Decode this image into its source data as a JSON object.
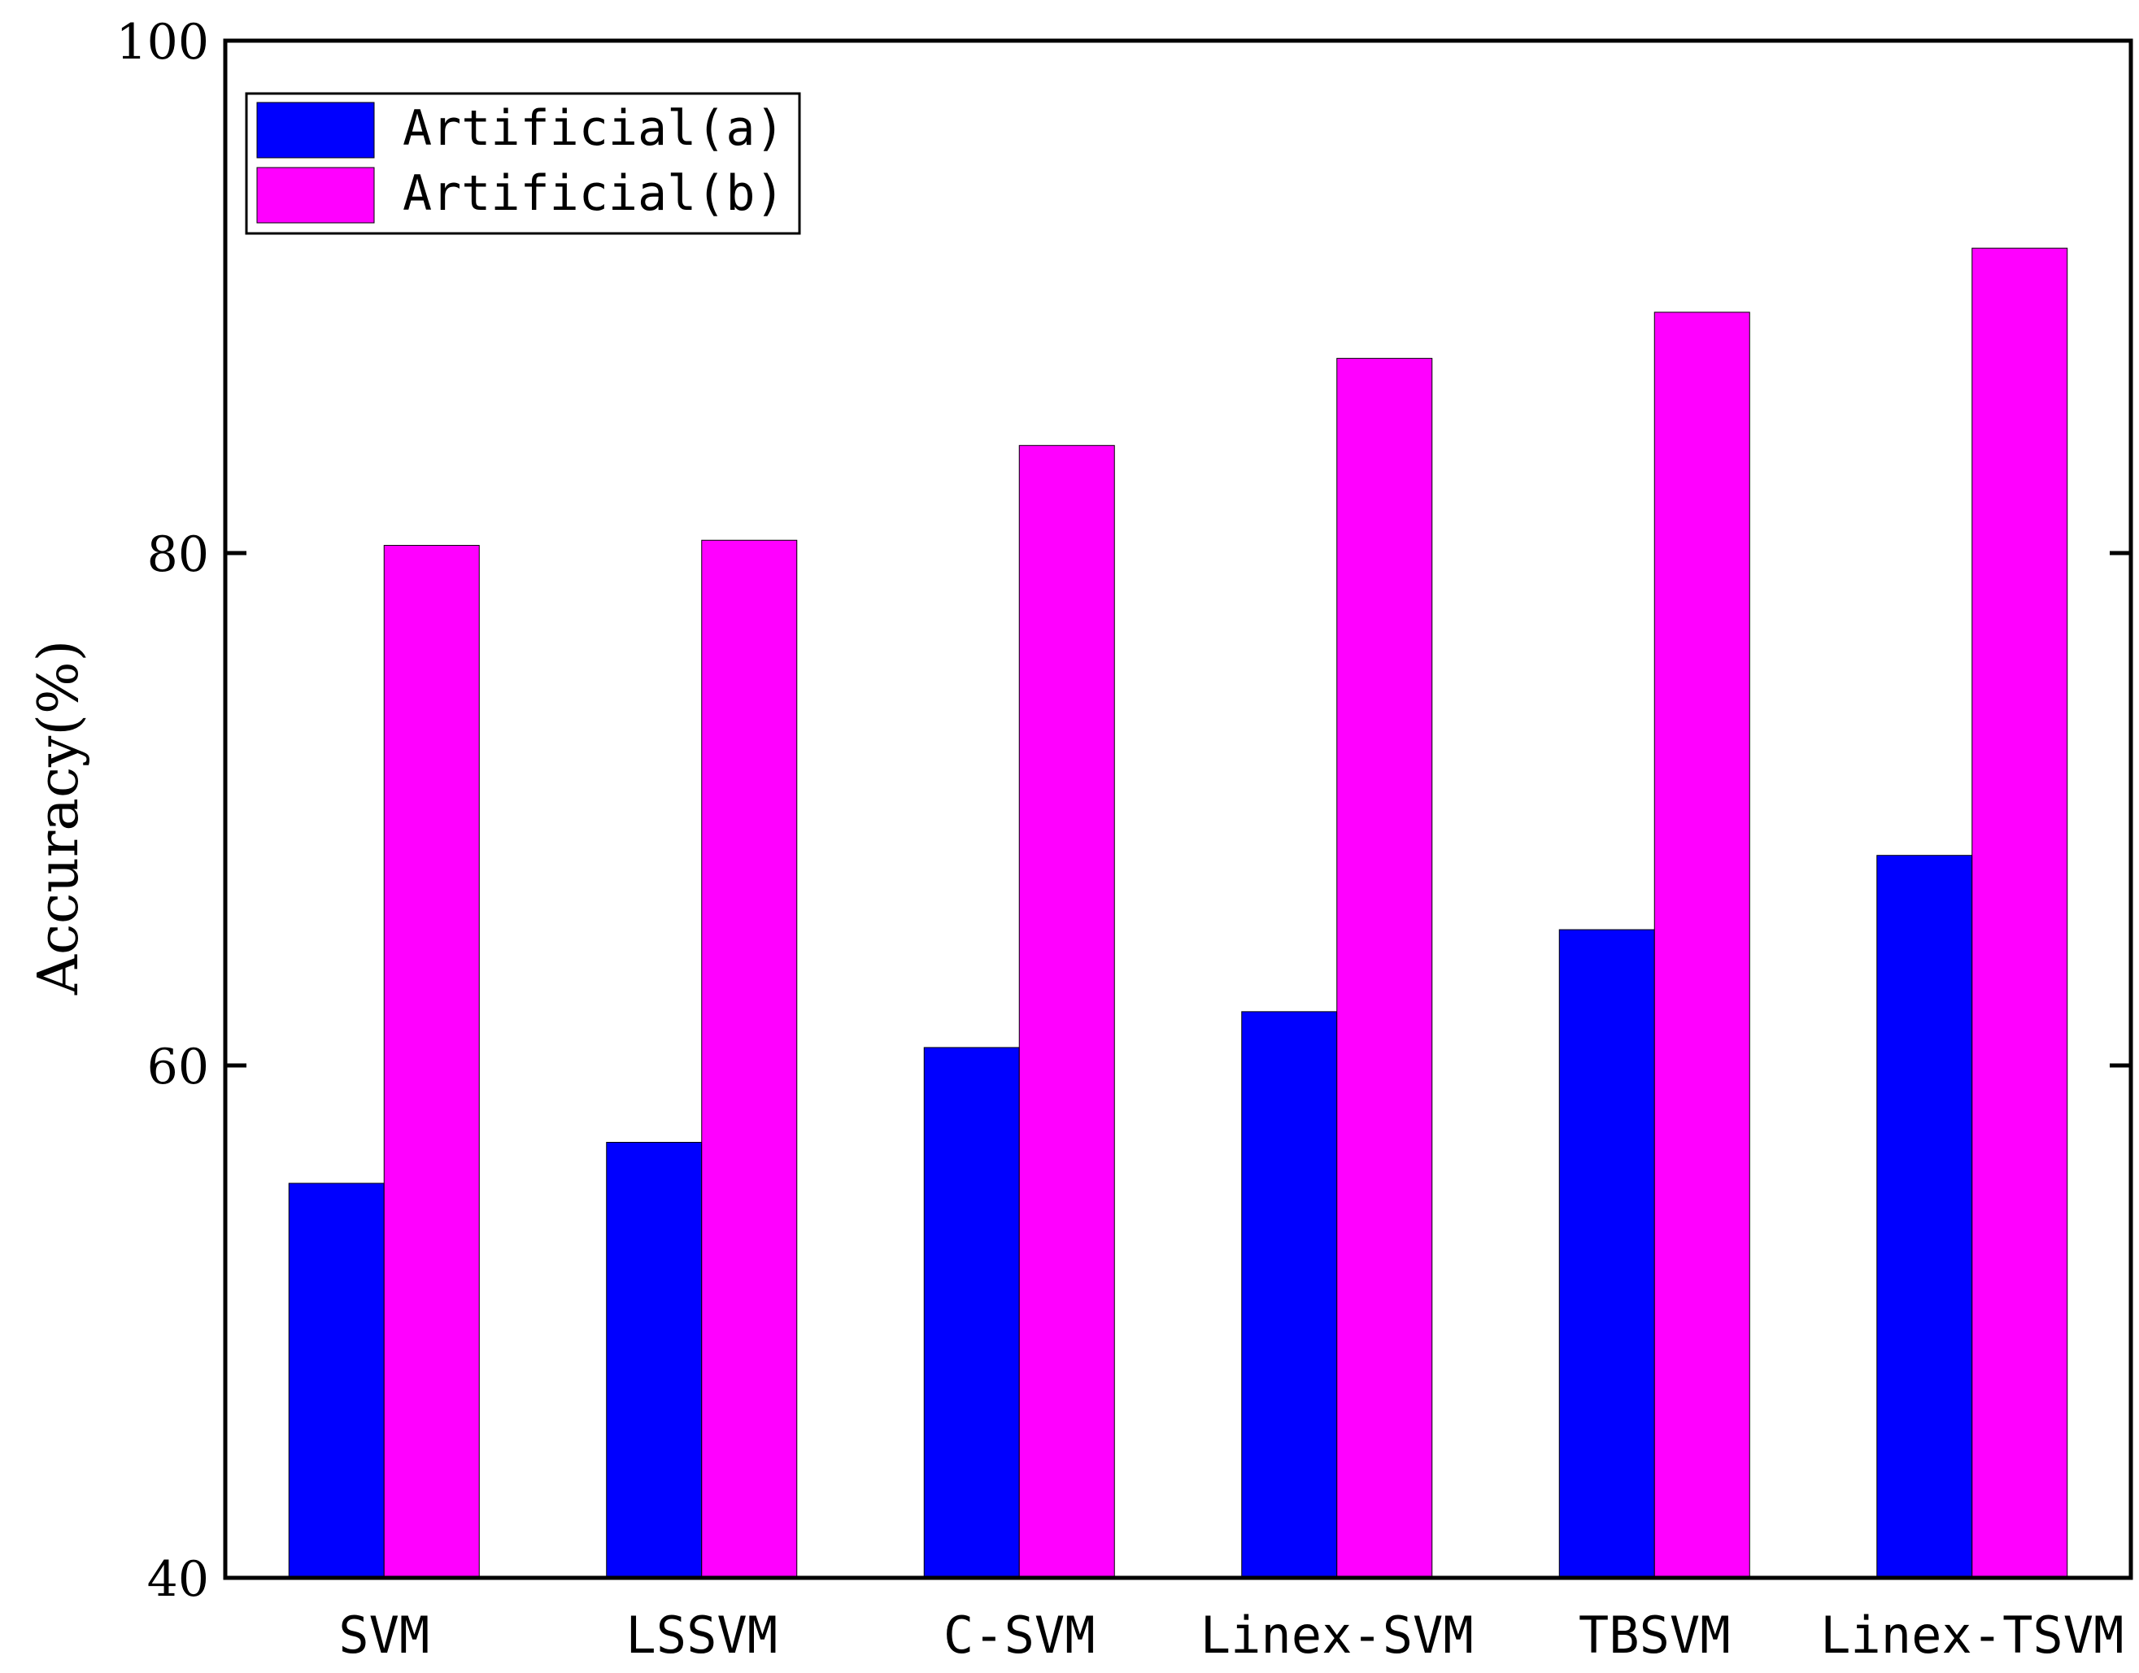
{
  "chart_data": {
    "type": "bar",
    "title": "",
    "xlabel": "",
    "ylabel": "Accuracy(%)",
    "ylim": [
      40,
      100
    ],
    "yticks": [
      40,
      60,
      80,
      100
    ],
    "categories": [
      "SVM",
      "LSSVM",
      "C-SVM",
      "Linex-SVM",
      "TBSVM",
      "Linex-TSVM"
    ],
    "series": [
      {
        "name": "Artificial(a)",
        "color": "#0000ff",
        "values": [
          55.4,
          57.0,
          60.7,
          62.1,
          65.3,
          68.2
        ]
      },
      {
        "name": "Artificial(b)",
        "color": "#ff00ff",
        "values": [
          80.3,
          80.5,
          84.2,
          87.6,
          89.4,
          91.9
        ]
      }
    ],
    "legend_position": "top-left",
    "grid": false
  }
}
